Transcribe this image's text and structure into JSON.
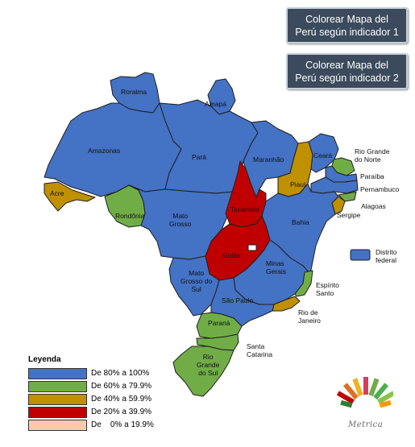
{
  "buttons": {
    "button1": [
      "Colorear Mapa del",
      "Perú según indicador 1"
    ],
    "button2": [
      "Colorear Mapa del",
      "Perú según indicador 2"
    ]
  },
  "colors": {
    "blue": "#4472c4",
    "green": "#70ad47",
    "gold": "#bf9000",
    "red": "#c00000",
    "peach": "#f8cbad"
  },
  "states": {
    "roraima": "Roraima",
    "amapa": "Amapá",
    "amazonas": "Amazonas",
    "para": "Pará",
    "maranhao": "Maranhão",
    "ceara": "Ceará",
    "rio_grande_do_norte": [
      "Rio Grande",
      "do Norte"
    ],
    "paraiba": "Paraíba",
    "pernambuco": "Pernambuco",
    "acre": "Acre",
    "rondonia": "Rondônia",
    "mato_grosso": [
      "Mato",
      "Grosso"
    ],
    "tocantins": "Tocantins",
    "piaui": "Piauí",
    "bahia": "Bahia",
    "alagoas": "Alagoas",
    "sergipe": "Sergipe",
    "goias": "Goiás",
    "distrito_federal": [
      "Distrito",
      "federal"
    ],
    "minas_gerais": [
      "Minas",
      "Gerais"
    ],
    "mato_grosso_do_sul": [
      "Mato",
      "Grosso do",
      "Sul"
    ],
    "espirito_santo": [
      "Espírito",
      "Santo"
    ],
    "sao_paulo": "São Paulo",
    "rio_de_janeiro": [
      "Rio de",
      "Janeiro"
    ],
    "parana": "Paraná",
    "santa_catarina": [
      "Santa",
      "Catarina"
    ],
    "rio_grande_do_sul": [
      "Rio",
      "Grande",
      "do Sul"
    ]
  },
  "legend": {
    "title": "Leyenda",
    "items": [
      {
        "label": "De 80% a 100%",
        "color": "#4472c4"
      },
      {
        "label": "De 60% a 79.9%",
        "color": "#70ad47"
      },
      {
        "label": "De 40% a 59.9%",
        "color": "#bf9000"
      },
      {
        "label": "De 20% a 39.9%",
        "color": "#c00000"
      },
      {
        "label": "De    0% a 19.9%",
        "color": "#f8cbad"
      }
    ]
  },
  "logo": {
    "text": "Metrica",
    "icon": "metrica-logo-icon"
  }
}
